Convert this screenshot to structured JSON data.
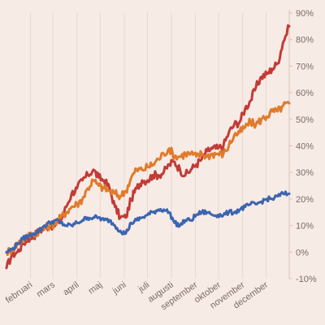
{
  "chart_data": {
    "type": "line",
    "title": "",
    "xlabel": "",
    "ylabel": "",
    "ylim": [
      -10,
      90
    ],
    "xlim": [
      "2020-01-01",
      "2020-12-31"
    ],
    "grid": "vertical",
    "y_ticks": [
      -10,
      0,
      10,
      20,
      30,
      40,
      50,
      60,
      70,
      80,
      90
    ],
    "y_tick_labels": [
      "-10%",
      "0%",
      "10%",
      "20%",
      "30%",
      "40%",
      "50%",
      "60%",
      "70%",
      "80%",
      "90%"
    ],
    "x_ticks": [
      "2020-02-01",
      "2020-03-01",
      "2020-04-01",
      "2020-05-01",
      "2020-06-01",
      "2020-07-01",
      "2020-08-01",
      "2020-09-01",
      "2020-10-01",
      "2020-11-01",
      "2020-12-01"
    ],
    "x_tick_labels": [
      "februari",
      "mars",
      "april",
      "maj",
      "juni",
      "juli",
      "augusti",
      "september",
      "oktober",
      "november",
      "december"
    ],
    "series": [
      {
        "color": "#c23b35",
        "points": [
          [
            "2020-01-01",
            -6
          ],
          [
            "2020-01-08",
            -1
          ],
          [
            "2020-01-15",
            0
          ],
          [
            "2020-01-22",
            3
          ],
          [
            "2020-01-29",
            5
          ],
          [
            "2020-02-05",
            6
          ],
          [
            "2020-02-12",
            8
          ],
          [
            "2020-02-19",
            9
          ],
          [
            "2020-02-26",
            10
          ],
          [
            "2020-03-04",
            10
          ],
          [
            "2020-03-11",
            12
          ],
          [
            "2020-03-18",
            17
          ],
          [
            "2020-03-25",
            22
          ],
          [
            "2020-04-01",
            24
          ],
          [
            "2020-04-08",
            27
          ],
          [
            "2020-04-15",
            29
          ],
          [
            "2020-04-22",
            31
          ],
          [
            "2020-04-29",
            28
          ],
          [
            "2020-05-06",
            27
          ],
          [
            "2020-05-13",
            24
          ],
          [
            "2020-05-20",
            17
          ],
          [
            "2020-05-27",
            13
          ],
          [
            "2020-06-03",
            13
          ],
          [
            "2020-06-10",
            20
          ],
          [
            "2020-06-17",
            24
          ],
          [
            "2020-06-24",
            27
          ],
          [
            "2020-07-01",
            27
          ],
          [
            "2020-07-08",
            29
          ],
          [
            "2020-07-15",
            29
          ],
          [
            "2020-07-22",
            30
          ],
          [
            "2020-07-29",
            33
          ],
          [
            "2020-08-05",
            34
          ],
          [
            "2020-08-12",
            31
          ],
          [
            "2020-08-19",
            29
          ],
          [
            "2020-08-26",
            31
          ],
          [
            "2020-09-02",
            33
          ],
          [
            "2020-09-09",
            35
          ],
          [
            "2020-09-16",
            38
          ],
          [
            "2020-09-23",
            39
          ],
          [
            "2020-09-30",
            39
          ],
          [
            "2020-10-07",
            40
          ],
          [
            "2020-10-14",
            45
          ],
          [
            "2020-10-21",
            48
          ],
          [
            "2020-10-28",
            49
          ],
          [
            "2020-11-04",
            54
          ],
          [
            "2020-11-11",
            57
          ],
          [
            "2020-11-18",
            62
          ],
          [
            "2020-11-25",
            66
          ],
          [
            "2020-12-02",
            67
          ],
          [
            "2020-12-09",
            69
          ],
          [
            "2020-12-16",
            71
          ],
          [
            "2020-12-23",
            79
          ],
          [
            "2020-12-31",
            85
          ]
        ]
      },
      {
        "color": "#e07b2c",
        "points": [
          [
            "2020-01-01",
            0
          ],
          [
            "2020-01-08",
            1
          ],
          [
            "2020-01-15",
            3
          ],
          [
            "2020-01-22",
            5
          ],
          [
            "2020-01-29",
            6
          ],
          [
            "2020-02-05",
            7
          ],
          [
            "2020-02-12",
            8
          ],
          [
            "2020-02-19",
            9
          ],
          [
            "2020-02-26",
            10
          ],
          [
            "2020-03-04",
            11
          ],
          [
            "2020-03-11",
            13
          ],
          [
            "2020-03-18",
            15
          ],
          [
            "2020-03-25",
            17
          ],
          [
            "2020-04-01",
            18
          ],
          [
            "2020-04-08",
            20
          ],
          [
            "2020-04-15",
            24
          ],
          [
            "2020-04-22",
            27
          ],
          [
            "2020-04-29",
            25
          ],
          [
            "2020-05-06",
            24
          ],
          [
            "2020-05-13",
            23
          ],
          [
            "2020-05-20",
            22
          ],
          [
            "2020-05-27",
            21
          ],
          [
            "2020-06-03",
            23
          ],
          [
            "2020-06-10",
            28
          ],
          [
            "2020-06-17",
            31
          ],
          [
            "2020-06-24",
            31
          ],
          [
            "2020-07-01",
            32
          ],
          [
            "2020-07-08",
            33
          ],
          [
            "2020-07-15",
            35
          ],
          [
            "2020-07-22",
            37
          ],
          [
            "2020-07-29",
            39
          ],
          [
            "2020-08-05",
            36
          ],
          [
            "2020-08-12",
            36
          ],
          [
            "2020-08-19",
            37
          ],
          [
            "2020-08-26",
            37
          ],
          [
            "2020-09-02",
            36
          ],
          [
            "2020-09-09",
            37
          ],
          [
            "2020-09-16",
            36
          ],
          [
            "2020-09-23",
            37
          ],
          [
            "2020-09-30",
            37
          ],
          [
            "2020-10-07",
            37
          ],
          [
            "2020-10-14",
            40
          ],
          [
            "2020-10-21",
            44
          ],
          [
            "2020-10-28",
            45
          ],
          [
            "2020-11-04",
            47
          ],
          [
            "2020-11-11",
            49
          ],
          [
            "2020-11-18",
            48
          ],
          [
            "2020-11-25",
            50
          ],
          [
            "2020-12-02",
            51
          ],
          [
            "2020-12-09",
            53
          ],
          [
            "2020-12-16",
            53
          ],
          [
            "2020-12-23",
            55
          ],
          [
            "2020-12-31",
            56
          ]
        ]
      },
      {
        "color": "#3b65b0",
        "points": [
          [
            "2020-01-01",
            0
          ],
          [
            "2020-01-08",
            1
          ],
          [
            "2020-01-15",
            3
          ],
          [
            "2020-01-22",
            5
          ],
          [
            "2020-01-29",
            6
          ],
          [
            "2020-02-05",
            7
          ],
          [
            "2020-02-12",
            8
          ],
          [
            "2020-02-19",
            10
          ],
          [
            "2020-02-26",
            11
          ],
          [
            "2020-03-04",
            12
          ],
          [
            "2020-03-11",
            11
          ],
          [
            "2020-03-18",
            10
          ],
          [
            "2020-03-25",
            10
          ],
          [
            "2020-04-01",
            11
          ],
          [
            "2020-04-08",
            12
          ],
          [
            "2020-04-15",
            13
          ],
          [
            "2020-04-22",
            13
          ],
          [
            "2020-04-29",
            13
          ],
          [
            "2020-05-06",
            12
          ],
          [
            "2020-05-13",
            12
          ],
          [
            "2020-05-20",
            10
          ],
          [
            "2020-05-27",
            8
          ],
          [
            "2020-06-03",
            7
          ],
          [
            "2020-06-10",
            11
          ],
          [
            "2020-06-17",
            12
          ],
          [
            "2020-06-24",
            13
          ],
          [
            "2020-07-01",
            14
          ],
          [
            "2020-07-08",
            15
          ],
          [
            "2020-07-15",
            16
          ],
          [
            "2020-07-22",
            16
          ],
          [
            "2020-07-29",
            15
          ],
          [
            "2020-08-05",
            11
          ],
          [
            "2020-08-12",
            10
          ],
          [
            "2020-08-19",
            12
          ],
          [
            "2020-08-26",
            12
          ],
          [
            "2020-09-02",
            14
          ],
          [
            "2020-09-09",
            15
          ],
          [
            "2020-09-16",
            15
          ],
          [
            "2020-09-23",
            14
          ],
          [
            "2020-09-30",
            14
          ],
          [
            "2020-10-07",
            14
          ],
          [
            "2020-10-14",
            15
          ],
          [
            "2020-10-21",
            15
          ],
          [
            "2020-10-28",
            16
          ],
          [
            "2020-11-04",
            17
          ],
          [
            "2020-11-11",
            18
          ],
          [
            "2020-11-18",
            18
          ],
          [
            "2020-11-25",
            19
          ],
          [
            "2020-12-02",
            20
          ],
          [
            "2020-12-09",
            20
          ],
          [
            "2020-12-16",
            21
          ],
          [
            "2020-12-23",
            22
          ],
          [
            "2020-12-31",
            22
          ]
        ]
      }
    ]
  }
}
